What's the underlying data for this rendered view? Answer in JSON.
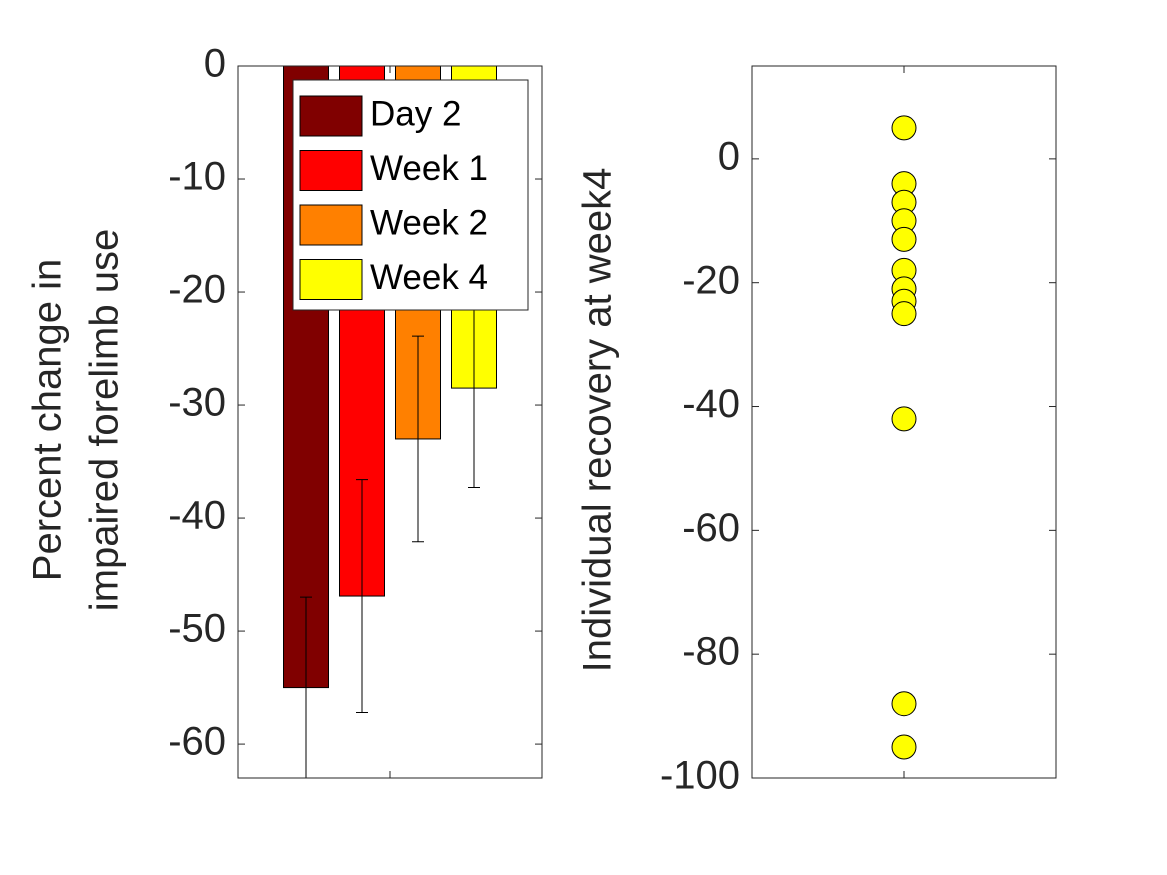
{
  "chart_data": [
    {
      "type": "bar",
      "y_label": [
        "Percent change in",
        "impaired forelimb use"
      ],
      "categories": [
        null
      ],
      "series": [
        {
          "name": "Day 2",
          "color": "#800000",
          "values": [
            -55
          ],
          "errors": [
            8
          ]
        },
        {
          "name": "Week 1",
          "color": "#ff0000",
          "values": [
            -46.9
          ],
          "errors": [
            10.3
          ]
        },
        {
          "name": "Week 2",
          "color": "#ff8000",
          "values": [
            -33
          ],
          "errors": [
            9.1
          ]
        },
        {
          "name": "Week 4",
          "color": "#ffff00",
          "values": [
            -28.5
          ],
          "errors": [
            8.8
          ]
        }
      ],
      "ylim": [
        -63,
        0
      ],
      "yticks": [
        -60,
        -50,
        -40,
        -30,
        -20,
        -10,
        0
      ],
      "legend": "upper right"
    },
    {
      "type": "scatter",
      "y_label": [
        "Individual recovery at week4"
      ],
      "categories": [
        null
      ],
      "series": [
        {
          "color": "#ffff00",
          "values": [
            5,
            -4,
            -7,
            -10,
            -13,
            -18,
            -21,
            -23,
            -25,
            -42,
            -88,
            -95
          ]
        }
      ],
      "ylim": [
        -100,
        15
      ],
      "yticks": [
        -100,
        -80,
        -60,
        -40,
        -20,
        0
      ]
    }
  ]
}
